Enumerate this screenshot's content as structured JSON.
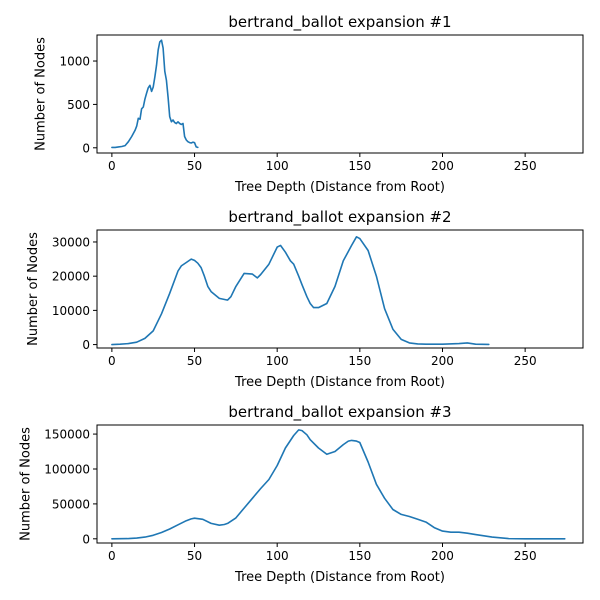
{
  "chart_data": [
    {
      "type": "line",
      "title": "bertrand_ballot expansion #1",
      "xlabel": "Tree Depth (Distance from Root)",
      "ylabel": "Number of Nodes",
      "xlim": [
        -9,
        285
      ],
      "ylim": [
        -60,
        1300
      ],
      "xticks": [
        0,
        50,
        100,
        150,
        200,
        250
      ],
      "yticks": [
        0,
        500,
        1000
      ],
      "ytick_labels": [
        "0",
        "500",
        "1000"
      ],
      "color": "#1f77b4",
      "grid": false,
      "series": [
        {
          "x": [
            0,
            2,
            4,
            6,
            8,
            10,
            12,
            14,
            15,
            16,
            17,
            18,
            19,
            20,
            21,
            22,
            23,
            24,
            25,
            26,
            27,
            28,
            29,
            30,
            31,
            32,
            33,
            34,
            35,
            36,
            37,
            38,
            39,
            40,
            41,
            42,
            43,
            44,
            45,
            46,
            47,
            48,
            49,
            50,
            51,
            52
          ],
          "y": [
            5,
            5,
            10,
            15,
            25,
            70,
            130,
            200,
            250,
            340,
            330,
            450,
            470,
            560,
            630,
            690,
            720,
            650,
            700,
            820,
            950,
            1130,
            1220,
            1240,
            1150,
            880,
            780,
            580,
            360,
            300,
            320,
            290,
            280,
            300,
            280,
            270,
            280,
            130,
            90,
            70,
            60,
            55,
            65,
            60,
            10,
            5
          ]
        }
      ]
    },
    {
      "type": "line",
      "title": "bertrand_ballot expansion #2",
      "xlabel": "Tree Depth (Distance from Root)",
      "ylabel": "Number of Nodes",
      "xlim": [
        -9,
        285
      ],
      "ylim": [
        -1000,
        33500
      ],
      "xticks": [
        0,
        50,
        100,
        150,
        200,
        250
      ],
      "yticks": [
        0,
        10000,
        20000,
        30000
      ],
      "ytick_labels": [
        "0",
        "10000",
        "20000",
        "30000"
      ],
      "color": "#1f77b4",
      "grid": false,
      "series": [
        {
          "x": [
            0,
            5,
            10,
            15,
            20,
            25,
            30,
            35,
            40,
            42,
            45,
            48,
            50,
            52,
            54,
            56,
            58,
            60,
            65,
            70,
            72,
            75,
            80,
            85,
            88,
            90,
            95,
            100,
            102,
            105,
            108,
            110,
            113,
            115,
            118,
            120,
            122,
            125,
            130,
            135,
            140,
            145,
            148,
            150,
            155,
            160,
            165,
            170,
            175,
            180,
            185,
            190,
            195,
            200,
            210,
            215,
            220,
            228
          ],
          "y": [
            0,
            100,
            300,
            700,
            1800,
            4000,
            9000,
            15000,
            21500,
            23000,
            24000,
            25000,
            24600,
            23800,
            22500,
            20000,
            17000,
            15500,
            13500,
            13000,
            14000,
            17000,
            20800,
            20600,
            19500,
            20500,
            23500,
            28500,
            29000,
            27000,
            24500,
            23500,
            20000,
            17500,
            14000,
            12000,
            10800,
            10800,
            12000,
            17000,
            24500,
            29000,
            31500,
            31000,
            27500,
            20000,
            10500,
            4500,
            1500,
            500,
            200,
            100,
            100,
            100,
            300,
            500,
            100,
            50
          ]
        }
      ]
    },
    {
      "type": "line",
      "title": "bertrand_ballot expansion #3",
      "xlabel": "Tree Depth (Distance from Root)",
      "ylabel": "Number of Nodes",
      "xlim": [
        -9,
        285
      ],
      "ylim": [
        -6000,
        163000
      ],
      "xticks": [
        0,
        50,
        100,
        150,
        200,
        250
      ],
      "yticks": [
        0,
        50000,
        100000,
        150000
      ],
      "ytick_labels": [
        "0",
        "50000",
        "100000",
        "150000"
      ],
      "color": "#1f77b4",
      "grid": false,
      "series": [
        {
          "x": [
            0,
            10,
            15,
            20,
            25,
            30,
            35,
            40,
            45,
            48,
            50,
            55,
            60,
            65,
            68,
            70,
            75,
            80,
            85,
            90,
            95,
            100,
            105,
            110,
            113,
            115,
            118,
            120,
            125,
            130,
            135,
            140,
            143,
            145,
            148,
            150,
            155,
            160,
            165,
            170,
            175,
            180,
            185,
            190,
            195,
            200,
            205,
            210,
            215,
            220,
            230,
            240,
            250,
            260,
            270,
            274
          ],
          "y": [
            0,
            300,
            1000,
            2500,
            5000,
            9000,
            14000,
            20000,
            26000,
            28500,
            29500,
            28000,
            22000,
            19500,
            20500,
            22000,
            30000,
            44000,
            58000,
            72000,
            85000,
            105000,
            130000,
            148000,
            156000,
            155000,
            149000,
            142000,
            130000,
            121000,
            125000,
            135000,
            140000,
            141000,
            140000,
            138000,
            110000,
            78000,
            58000,
            42000,
            35000,
            32000,
            28000,
            24000,
            16000,
            11000,
            9500,
            9500,
            8000,
            6000,
            2500,
            300,
            0,
            0,
            0,
            0
          ]
        }
      ]
    }
  ]
}
